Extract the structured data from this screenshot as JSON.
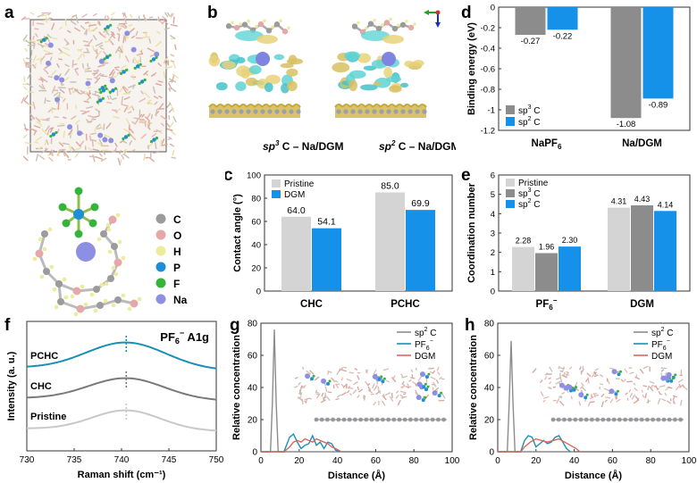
{
  "panel_labels": {
    "a": "a",
    "b": "b",
    "c": "c",
    "d": "d",
    "e": "e",
    "f": "f",
    "g": "g",
    "h": "h"
  },
  "colors": {
    "gray": "#8c8c8c",
    "lightgray": "#d4d4d4",
    "blue": "#1591ea",
    "red": "#d9675c",
    "teal": "#1a8fb5",
    "grid": "#cccccc"
  },
  "panel_a": {
    "legend": [
      {
        "name": "C",
        "color": "#9b9b9b"
      },
      {
        "name": "O",
        "color": "#e5a8a8"
      },
      {
        "name": "H",
        "color": "#ecec9c"
      },
      {
        "name": "P",
        "color": "#1e8fd6"
      },
      {
        "name": "F",
        "color": "#35b33a"
      },
      {
        "name": "Na",
        "color": "#8d8fe3"
      }
    ]
  },
  "panel_b": {
    "caption_left_a": "sp",
    "caption_left_sup": "3",
    "caption_left_b": " C – Na/DGM",
    "caption_right_a": "sp",
    "caption_right_sup": "2",
    "caption_right_b": " C – Na/DGM"
  },
  "panel_f": {
    "title_main": "PF",
    "title_sub": "6",
    "title_sup": "−",
    "title_rest": " A1g",
    "xlabel": "Raman shift (cm⁻¹)",
    "ylabel": "Intensity (a. u.)",
    "xlim": [
      730,
      750
    ],
    "xticks": [
      "730",
      "735",
      "740",
      "745",
      "750"
    ],
    "peak_position": 740.5,
    "series": [
      {
        "name": "PCHC",
        "color": "#1a8fb5",
        "label": "PCHC"
      },
      {
        "name": "CHC",
        "color": "#7a7a7a",
        "label": "CHC"
      },
      {
        "name": "Pristine",
        "color": "#c8c8c8",
        "label": "Pristine"
      }
    ]
  },
  "chart_data": [
    {
      "id": "c",
      "type": "bar",
      "categories": [
        "CHC",
        "PCHC"
      ],
      "series": [
        {
          "name": "Pristine",
          "color": "#d4d4d4",
          "values": [
            64.0,
            85.0
          ],
          "labels": [
            "64.0",
            "85.0"
          ]
        },
        {
          "name": "DGM",
          "color": "#1591ea",
          "values": [
            54.1,
            69.9
          ],
          "labels": [
            "54.1",
            "69.9"
          ]
        }
      ],
      "ylabel": "Contact angle (°)",
      "ylim": [
        0,
        100
      ],
      "yticks": [
        "0",
        "20",
        "40",
        "60",
        "80",
        "100"
      ],
      "legend_position": "top-left"
    },
    {
      "id": "d",
      "type": "bar",
      "categories": [
        "NaPF6",
        "Na/DGM"
      ],
      "category_labels": [
        {
          "main": "NaPF",
          "sub": "6"
        },
        {
          "main": "Na/DGM",
          "sub": ""
        }
      ],
      "series": [
        {
          "name": "sp³ C",
          "color": "#8c8c8c",
          "values": [
            -0.27,
            -1.08
          ],
          "labels": [
            "-0.27",
            "-1.08"
          ]
        },
        {
          "name": "sp² C",
          "color": "#1591ea",
          "values": [
            -0.22,
            -0.89
          ],
          "labels": [
            "-0.22",
            "-0.89"
          ]
        }
      ],
      "legend_names": [
        {
          "a": "sp",
          "sup": "3",
          "b": " C"
        },
        {
          "a": "sp",
          "sup": "2",
          "b": " C"
        }
      ],
      "ylabel": "Binding energy (eV)",
      "ylim": [
        -1.2,
        0
      ],
      "yticks": [
        "0",
        "-0.2",
        "-0.4",
        "-0.6",
        "-0.8",
        "-1",
        "-1.2"
      ],
      "legend_position": "bottom-left"
    },
    {
      "id": "e",
      "type": "bar",
      "categories": [
        "PF6-",
        "DGM"
      ],
      "category_labels": [
        {
          "main": "PF",
          "sub": "6",
          "sup": "−"
        },
        {
          "main": "DGM",
          "sub": "",
          "sup": ""
        }
      ],
      "series": [
        {
          "name": "Pristine",
          "color": "#d4d4d4",
          "values": [
            2.28,
            4.31
          ],
          "labels": [
            "2.28",
            "4.31"
          ]
        },
        {
          "name": "sp³ C",
          "color": "#8c8c8c",
          "values": [
            1.96,
            4.43
          ],
          "labels": [
            "1.96",
            "4.43"
          ]
        },
        {
          "name": "sp² C",
          "color": "#1591ea",
          "values": [
            2.3,
            4.14
          ],
          "labels": [
            "2.30",
            "4.14"
          ]
        }
      ],
      "legend_names": [
        {
          "a": "Pristine",
          "sup": "",
          "b": ""
        },
        {
          "a": "sp",
          "sup": "3",
          "b": " C"
        },
        {
          "a": "sp",
          "sup": "2",
          "b": " C"
        }
      ],
      "ylabel": "Coordination number",
      "ylim": [
        0,
        6
      ],
      "yticks": [
        "0",
        "1",
        "2",
        "3",
        "4",
        "5",
        "6"
      ],
      "legend_position": "top-left"
    },
    {
      "id": "g",
      "type": "line",
      "xlabel": "Distance (Å)",
      "ylabel": "Relative concentration",
      "xlim": [
        0,
        100
      ],
      "ylim": [
        0,
        80
      ],
      "xticks": [
        "0",
        "20",
        "40",
        "60",
        "80",
        "100"
      ],
      "yticks": [
        "0",
        "20",
        "40",
        "60",
        "80"
      ],
      "legend_position": "top-right",
      "legend_names": [
        {
          "a": "sp",
          "sup": "2",
          "sub": "",
          "b": " C"
        },
        {
          "a": "PF",
          "sup": "−",
          "sub": "6",
          "b": ""
        },
        {
          "a": "DGM",
          "sup": "",
          "sub": "",
          "b": ""
        }
      ],
      "series": [
        {
          "name": "sp² C",
          "color": "#8c8c8c",
          "x": [
            0,
            5,
            6,
            7,
            8,
            9,
            10,
            40
          ],
          "y": [
            0,
            0,
            30,
            76,
            30,
            0,
            0,
            0
          ]
        },
        {
          "name": "PF6-",
          "color": "#1a8fb5",
          "x": [
            0,
            12,
            15,
            17,
            19,
            21,
            23,
            25,
            27,
            29,
            31,
            33,
            35,
            37,
            39,
            41
          ],
          "y": [
            0,
            0,
            9,
            11,
            6,
            2,
            4,
            5,
            10,
            4,
            6,
            2,
            6,
            5,
            1,
            0
          ]
        },
        {
          "name": "DGM",
          "color": "#d9675c",
          "x": [
            0,
            12,
            15,
            17,
            19,
            21,
            23,
            25,
            27,
            29,
            31,
            33,
            35,
            37,
            39,
            42
          ],
          "y": [
            0,
            0,
            3,
            6,
            7,
            6,
            8,
            7,
            6,
            8,
            7,
            6,
            5,
            3,
            2,
            0
          ]
        }
      ]
    },
    {
      "id": "h",
      "type": "line",
      "xlabel": "Distance (Å)",
      "ylabel": "Relative concentration",
      "xlim": [
        0,
        100
      ],
      "ylim": [
        0,
        80
      ],
      "xticks": [
        "0",
        "20",
        "40",
        "60",
        "80",
        "100"
      ],
      "yticks": [
        "0",
        "20",
        "40",
        "60",
        "80"
      ],
      "legend_position": "top-right",
      "legend_names": [
        {
          "a": "sp",
          "sup": "2",
          "sub": "",
          "b": " C"
        },
        {
          "a": "PF",
          "sup": "−",
          "sub": "6",
          "b": ""
        },
        {
          "a": "DGM",
          "sup": "",
          "sub": "",
          "b": ""
        }
      ],
      "series": [
        {
          "name": "sp² C",
          "color": "#8c8c8c",
          "x": [
            0,
            5,
            6,
            7,
            8,
            9,
            10,
            40
          ],
          "y": [
            0,
            0,
            30,
            69,
            30,
            0,
            0,
            0
          ]
        },
        {
          "name": "PF6-",
          "color": "#1a8fb5",
          "x": [
            0,
            12,
            14,
            16,
            18,
            20,
            22,
            24,
            26,
            28,
            30,
            32,
            34,
            36,
            38
          ],
          "y": [
            0,
            0,
            7,
            10,
            9,
            3,
            5,
            7,
            5,
            6,
            9,
            10,
            6,
            2,
            0
          ]
        },
        {
          "name": "DGM",
          "color": "#d9675c",
          "x": [
            0,
            12,
            14,
            17,
            20,
            23,
            26,
            29,
            32,
            35,
            38,
            41,
            43
          ],
          "y": [
            0,
            0,
            3,
            6,
            8,
            7,
            6,
            7,
            8,
            6,
            4,
            2,
            0
          ]
        }
      ]
    }
  ]
}
